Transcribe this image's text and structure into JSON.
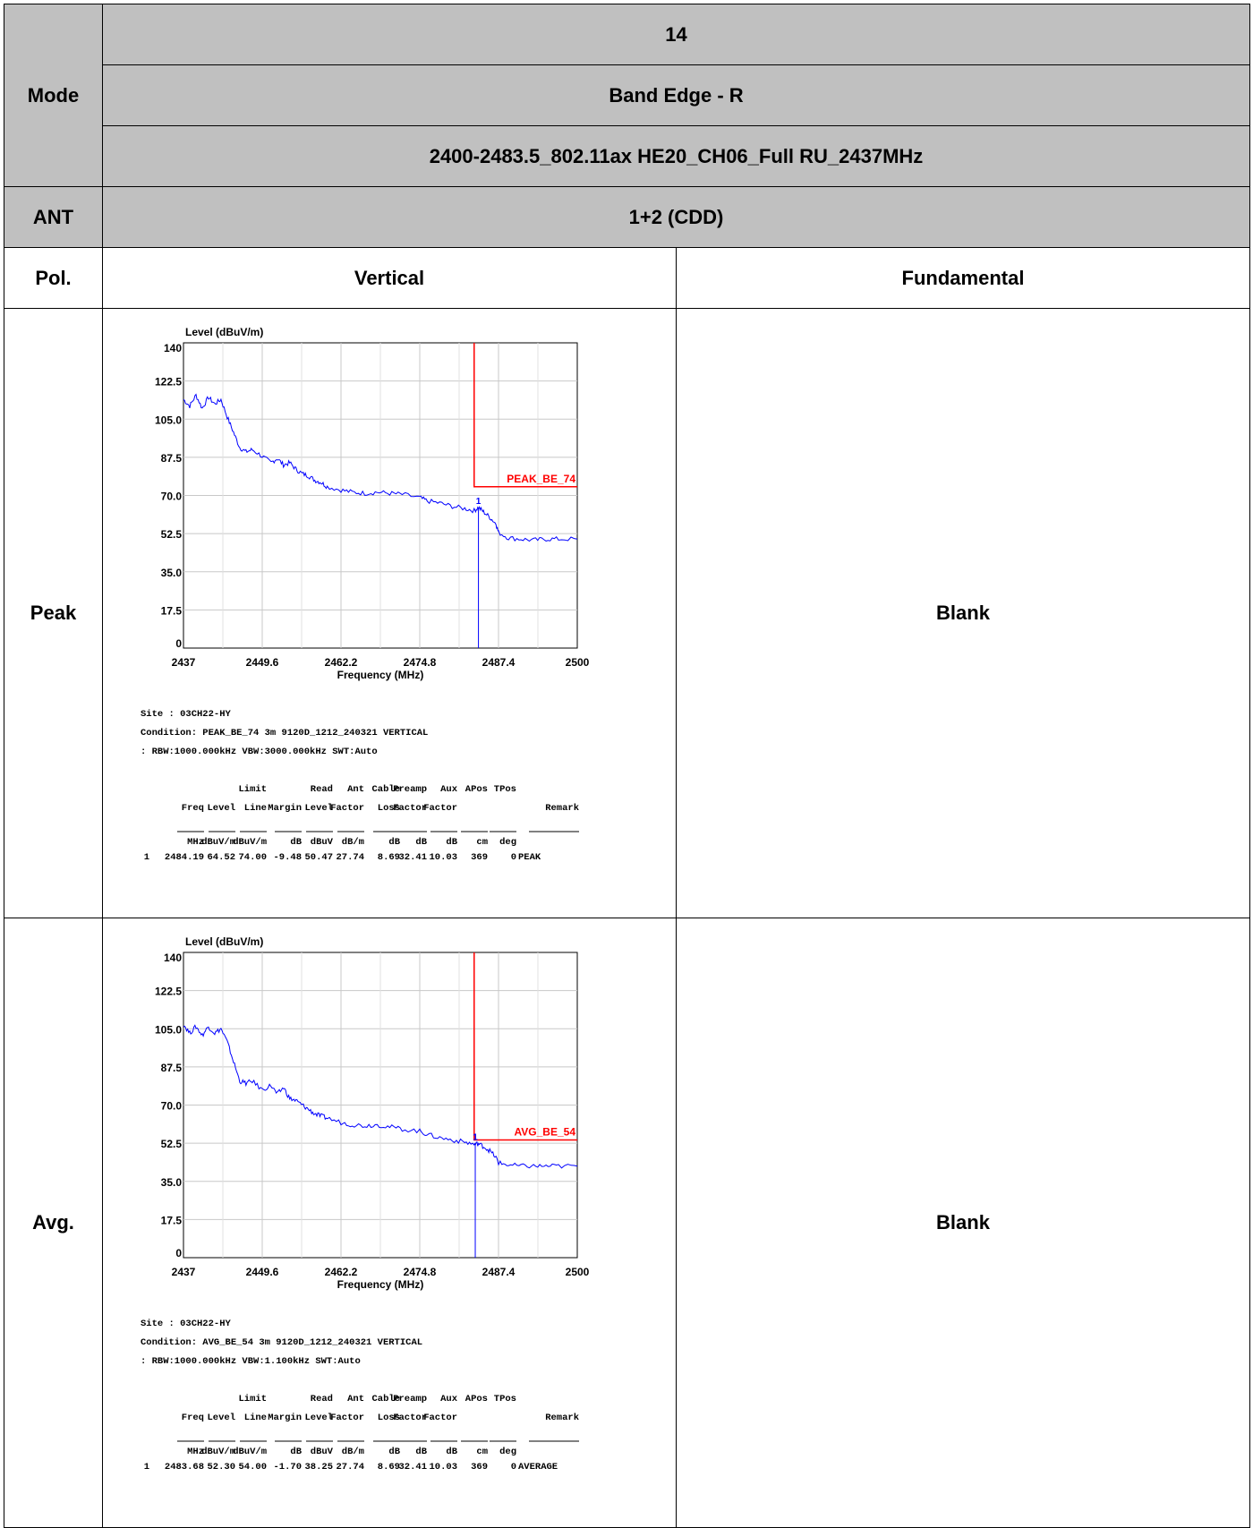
{
  "header": {
    "test_no": "14",
    "mode_label": "Mode",
    "mode_value": "Band Edge - R",
    "setting": "2400-2483.5_802.11ax HE20_CH06_Full RU_2437MHz",
    "ant_label": "ANT",
    "ant_value": "1+2 (CDD)",
    "pol_label": "Pol.",
    "col_vertical": "Vertical",
    "col_fundamental": "Fundamental"
  },
  "rows": [
    {
      "label": "Peak",
      "fundamental": "Blank"
    },
    {
      "label": "Avg.",
      "fundamental": "Blank"
    }
  ],
  "colors": {
    "header_bg": "#c0c0c0",
    "trace": "#0000ff",
    "limit": "#ff0000",
    "grid": "#c8c8c8"
  },
  "chart_data": [
    {
      "type": "line",
      "ylabel": "Level (dBuV/m)",
      "xlabel": "Frequency (MHz)",
      "xlim": [
        2437,
        2500
      ],
      "ylim": [
        0,
        140
      ],
      "xticks": [
        "2437",
        "2449.6",
        "2462.2",
        "2474.8",
        "2487.4",
        "2500"
      ],
      "yticks": [
        "0",
        "17.5",
        "35.0",
        "52.5",
        "70.0",
        "87.5",
        "105.0",
        "122.5",
        "140"
      ],
      "grid": true,
      "limit": {
        "label": "PEAK_BE_74",
        "value": 74,
        "start_x": 2483.5
      },
      "marker": {
        "label": "1",
        "x": 2484.19,
        "y": 64.52
      },
      "series": [
        {
          "x": [
            2437,
            2438,
            2439,
            2440,
            2441,
            2442,
            2443,
            2444,
            2445,
            2446,
            2447,
            2448,
            2449.6,
            2451,
            2452,
            2453,
            2454,
            2455,
            2456,
            2457,
            2458,
            2459,
            2460,
            2462.2,
            2464,
            2466,
            2468,
            2470,
            2472,
            2474.8,
            2476,
            2478,
            2480,
            2482,
            2483.5,
            2484.2,
            2485,
            2486,
            2487,
            2487.4,
            2489,
            2491,
            2493,
            2495,
            2497,
            2500
          ],
          "y": [
            114,
            111,
            116,
            110,
            115,
            112,
            114,
            106,
            99,
            92,
            90,
            91,
            88,
            85,
            87,
            84,
            85,
            82,
            80,
            79,
            77,
            76,
            74,
            72.5,
            71.5,
            71,
            71.5,
            71,
            70.5,
            69,
            67.5,
            66.5,
            65,
            64,
            63,
            64.5,
            62.5,
            60,
            57,
            53,
            50.5,
            50,
            49.5,
            50,
            50,
            50
          ]
        }
      ],
      "site": "Site      : 03CH22-HY",
      "condition": "Condition: PEAK_BE_74 3m 9120D_1212_240321 VERTICAL",
      "condition2": "         : RBW:1000.000kHz VBW:3000.000kHz SWT:Auto",
      "table": {
        "headers1": [
          "",
          "",
          "",
          "Limit",
          "",
          "Read",
          "Ant",
          "Cable",
          "Preamp",
          "Aux",
          "APos",
          "TPos",
          ""
        ],
        "headers2": [
          "",
          "Freq",
          "Level",
          "Line",
          "Margin",
          "Level",
          "Factor",
          "Loss",
          "Factor",
          "Factor",
          "",
          "",
          "Remark"
        ],
        "units": [
          "",
          "MHz",
          "dBuV/m",
          "dBuV/m",
          "dB",
          "dBuV",
          "dB/m",
          "dB",
          "dB",
          "dB",
          "cm",
          "deg",
          ""
        ],
        "row": [
          "1",
          "2484.19",
          "64.52",
          "74.00",
          "-9.48",
          "50.47",
          "27.74",
          "8.69",
          "32.41",
          "10.03",
          "369",
          "0",
          "PEAK"
        ]
      }
    },
    {
      "type": "line",
      "ylabel": "Level (dBuV/m)",
      "xlabel": "Frequency (MHz)",
      "xlim": [
        2437,
        2500
      ],
      "ylim": [
        0,
        140
      ],
      "xticks": [
        "2437",
        "2449.6",
        "2462.2",
        "2474.8",
        "2487.4",
        "2500"
      ],
      "yticks": [
        "0",
        "17.5",
        "35.0",
        "52.5",
        "70.0",
        "87.5",
        "105.0",
        "122.5",
        "140"
      ],
      "grid": true,
      "limit": {
        "label": "AVG_BE_54",
        "value": 54,
        "start_x": 2483.5
      },
      "marker": {
        "label": "1",
        "x": 2483.68,
        "y": 52.3
      },
      "series": [
        {
          "x": [
            2437,
            2438,
            2439,
            2440,
            2441,
            2442,
            2443,
            2444,
            2445,
            2446,
            2447,
            2448,
            2449.6,
            2451,
            2452,
            2453,
            2454,
            2455,
            2456,
            2457,
            2458,
            2459,
            2460,
            2462.2,
            2464,
            2466,
            2468,
            2470,
            2472,
            2474.8,
            2476,
            2478,
            2480,
            2482,
            2483.5,
            2484.2,
            2485,
            2486,
            2487,
            2487.4,
            2489,
            2491,
            2493,
            2495,
            2497,
            2500
          ],
          "y": [
            107,
            103,
            106,
            102,
            106,
            103,
            105,
            99,
            90,
            81,
            80,
            81,
            77,
            79,
            75,
            78,
            73,
            72,
            70,
            68,
            66,
            65,
            64,
            62,
            61,
            60.5,
            61,
            60,
            59,
            58,
            56.5,
            55,
            54,
            53,
            52,
            52.3,
            51,
            49,
            46,
            43.5,
            42.5,
            42,
            42,
            42,
            42,
            42
          ]
        }
      ],
      "site": "Site      : 03CH22-HY",
      "condition": "Condition: AVG_BE_54 3m 9120D_1212_240321 VERTICAL",
      "condition2": "         : RBW:1000.000kHz VBW:1.100kHz SWT:Auto",
      "table": {
        "headers1": [
          "",
          "",
          "",
          "Limit",
          "",
          "Read",
          "Ant",
          "Cable",
          "Preamp",
          "Aux",
          "APos",
          "TPos",
          ""
        ],
        "headers2": [
          "",
          "Freq",
          "Level",
          "Line",
          "Margin",
          "Level",
          "Factor",
          "Loss",
          "Factor",
          "Factor",
          "",
          "",
          "Remark"
        ],
        "units": [
          "",
          "MHz",
          "dBuV/m",
          "dBuV/m",
          "dB",
          "dBuV",
          "dB/m",
          "dB",
          "dB",
          "dB",
          "cm",
          "deg",
          ""
        ],
        "row": [
          "1",
          "2483.68",
          "52.30",
          "54.00",
          "-1.70",
          "38.25",
          "27.74",
          "8.69",
          "32.41",
          "10.03",
          "369",
          "0",
          "AVERAGE"
        ]
      }
    }
  ]
}
